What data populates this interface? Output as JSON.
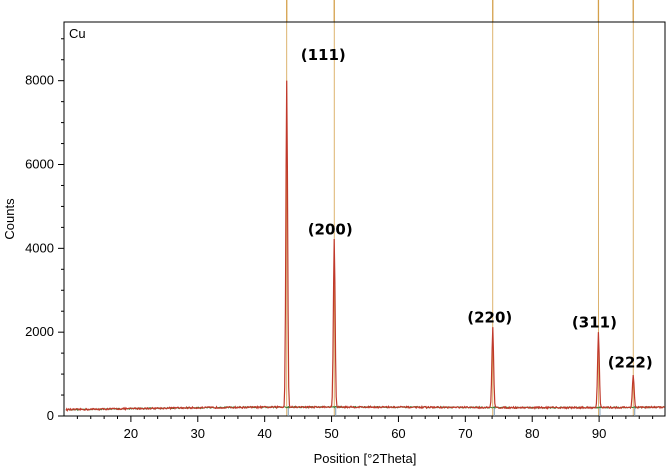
{
  "chart_data": {
    "type": "line",
    "sample_label": "Cu",
    "xlabel": "Position [°2Theta]",
    "ylabel": "Counts",
    "xlim": [
      10,
      100
    ],
    "ylim": [
      0,
      9400
    ],
    "x_ticks": [
      20,
      30,
      40,
      50,
      60,
      70,
      80,
      90
    ],
    "y_ticks": [
      0,
      2000,
      4000,
      6000,
      8000
    ],
    "grid": false,
    "colors": {
      "measured": "#c0392b",
      "background": "#3a7d2c",
      "reference": "#d4a04a",
      "reference_marker": "#7a9ab8"
    },
    "background_level": [
      150,
      240
    ],
    "peaks": [
      {
        "label": "(111)",
        "x": 43.3,
        "y": 7800
      },
      {
        "label": "(200)",
        "x": 50.4,
        "y": 4000
      },
      {
        "label": "(220)",
        "x": 74.1,
        "y": 1900
      },
      {
        "label": "(311)",
        "x": 89.9,
        "y": 1780
      },
      {
        "label": "(222)",
        "x": 95.1,
        "y": 780
      }
    ],
    "reference_lines": [
      43.3,
      50.4,
      74.1,
      89.9,
      95.1
    ]
  }
}
